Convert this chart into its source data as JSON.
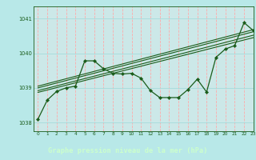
{
  "title": "Graphe pression niveau de la mer (hPa)",
  "bg_color": "#b8e8e8",
  "plot_bg_color": "#cce8e8",
  "line_color": "#1a5c1a",
  "xlabel_bg": "#336633",
  "xlabel_fg": "#ccffcc",
  "xlim": [
    -0.5,
    23
  ],
  "ylim": [
    1037.75,
    1041.35
  ],
  "yticks": [
    1038,
    1039,
    1040,
    1041
  ],
  "xticks": [
    0,
    1,
    2,
    3,
    4,
    5,
    6,
    7,
    8,
    9,
    10,
    11,
    12,
    13,
    14,
    15,
    16,
    17,
    18,
    19,
    20,
    21,
    22,
    23
  ],
  "main_x": [
    0,
    1,
    2,
    3,
    4,
    5,
    6,
    7,
    8,
    9,
    10,
    11,
    12,
    13,
    14,
    15,
    16,
    17,
    18,
    19,
    20,
    21,
    22,
    23
  ],
  "main_y": [
    1038.1,
    1038.65,
    1038.9,
    1039.0,
    1039.05,
    1039.78,
    1039.78,
    1039.55,
    1039.42,
    1039.4,
    1039.42,
    1039.28,
    1038.92,
    1038.72,
    1038.72,
    1038.72,
    1038.95,
    1039.25,
    1038.88,
    1039.88,
    1040.12,
    1040.22,
    1040.88,
    1040.65
  ],
  "trend1_x": [
    0,
    23
  ],
  "trend1_y": [
    1039.05,
    1040.68
  ],
  "trend2_x": [
    0,
    23
  ],
  "trend2_y": [
    1039.0,
    1040.62
  ],
  "trend3_x": [
    0,
    23
  ],
  "trend3_y": [
    1038.92,
    1040.52
  ],
  "trend4_x": [
    0,
    23
  ],
  "trend4_y": [
    1038.87,
    1040.45
  ],
  "vline_color": "#ffaaaa",
  "hline_color": "#aadddd"
}
